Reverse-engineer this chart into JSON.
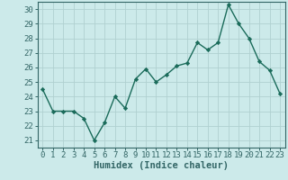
{
  "x": [
    0,
    1,
    2,
    3,
    4,
    5,
    6,
    7,
    8,
    9,
    10,
    11,
    12,
    13,
    14,
    15,
    16,
    17,
    18,
    19,
    20,
    21,
    22,
    23
  ],
  "y": [
    24.5,
    23.0,
    23.0,
    23.0,
    22.5,
    21.0,
    22.2,
    24.0,
    23.2,
    25.2,
    25.9,
    25.0,
    25.5,
    26.1,
    26.3,
    27.7,
    27.2,
    27.7,
    30.3,
    29.0,
    28.0,
    26.4,
    25.8,
    24.2
  ],
  "line_color": "#1a6b5a",
  "marker": "D",
  "marker_size": 2.2,
  "bg_color": "#cceaea",
  "grid_color": "#b0d0d0",
  "xlabel": "Humidex (Indice chaleur)",
  "ylabel": "",
  "ylim": [
    20.5,
    30.5
  ],
  "xlim": [
    -0.5,
    23.5
  ],
  "yticks": [
    21,
    22,
    23,
    24,
    25,
    26,
    27,
    28,
    29,
    30
  ],
  "xticks": [
    0,
    1,
    2,
    3,
    4,
    5,
    6,
    7,
    8,
    9,
    10,
    11,
    12,
    13,
    14,
    15,
    16,
    17,
    18,
    19,
    20,
    21,
    22,
    23
  ],
  "tick_label_fontsize": 6.5,
  "xlabel_fontsize": 7.5,
  "line_width": 1.0,
  "spine_color": "#336666"
}
